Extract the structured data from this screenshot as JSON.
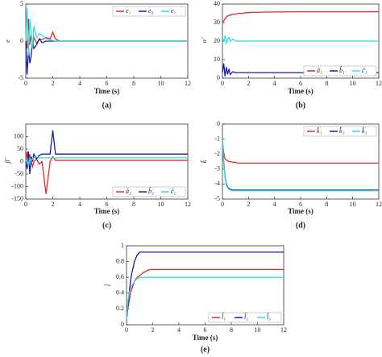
{
  "chart_data": [
    {
      "type": "line",
      "caption": "(a)",
      "xlabel": "Time (s)",
      "ylabel": "e",
      "legend": "top-right",
      "x": [
        0,
        0.1,
        0.2,
        0.3,
        0.4,
        0.5,
        0.6,
        0.8,
        1,
        1.2,
        1.5,
        1.8,
        2,
        2.2,
        2.5,
        3,
        4,
        6,
        8,
        10,
        12
      ],
      "xlim": [
        0,
        12
      ],
      "xticks": [
        0,
        2,
        4,
        6,
        8,
        10,
        12
      ],
      "ylim": [
        -5,
        5
      ],
      "yticks": [
        -5,
        0,
        5
      ],
      "series": [
        {
          "name": "e₁",
          "color": "#e02828",
          "values": [
            0,
            -1,
            3,
            -0.5,
            1,
            -1,
            0.5,
            -0.3,
            0.3,
            0.2,
            0.5,
            0.3,
            1.2,
            0.3,
            0,
            0,
            0,
            0,
            0,
            0,
            0
          ]
        },
        {
          "name": "e₂",
          "color": "#1c1ca8",
          "values": [
            0,
            -4.5,
            -1,
            -3,
            -2,
            0,
            -1,
            -0.5,
            0.3,
            -0.2,
            0,
            0,
            0,
            0,
            0,
            0,
            0,
            0,
            0,
            0,
            0
          ]
        },
        {
          "name": "e₃",
          "color": "#33e0e0",
          "values": [
            0,
            4.5,
            -2,
            3,
            1,
            -1,
            2,
            0.5,
            1,
            0.8,
            0.3,
            0.2,
            0.1,
            0,
            0,
            0,
            0,
            0,
            0,
            0,
            0
          ]
        }
      ]
    },
    {
      "type": "line",
      "caption": "(b)",
      "xlabel": "Time (s)",
      "ylabel": "α̂",
      "legend": "bottom-right",
      "x": [
        0,
        0.1,
        0.2,
        0.3,
        0.4,
        0.5,
        0.6,
        0.8,
        1,
        1.2,
        1.5,
        1.8,
        2,
        2.2,
        2.5,
        3,
        4,
        6,
        8,
        10,
        12
      ],
      "xlim": [
        0,
        12
      ],
      "xticks": [
        0,
        2,
        4,
        6,
        8,
        10,
        12
      ],
      "ylim": [
        0,
        40
      ],
      "yticks": [
        0,
        10,
        20,
        30,
        40
      ],
      "series": [
        {
          "name": "â₁",
          "color": "#e02828",
          "values": [
            30,
            31,
            32,
            33,
            33.5,
            34,
            34,
            34.5,
            34.5,
            35,
            35,
            35.3,
            35.3,
            35.5,
            35.5,
            35.6,
            35.7,
            35.8,
            35.8,
            35.8,
            35.8
          ]
        },
        {
          "name": "b̂₁",
          "color": "#1c1ca8",
          "values": [
            3,
            8,
            1,
            6,
            2,
            5,
            2,
            3.5,
            3,
            3,
            3,
            3,
            3,
            3,
            3,
            3,
            3,
            3,
            3,
            3,
            3
          ]
        },
        {
          "name": "ĉ₁",
          "color": "#33e0e0",
          "values": [
            22,
            20,
            23,
            19,
            21,
            22,
            20,
            21,
            20,
            20,
            20,
            20,
            20,
            20,
            20,
            20,
            20,
            20,
            20,
            20,
            20
          ]
        }
      ]
    },
    {
      "type": "line",
      "caption": "(c)",
      "xlabel": "Time (s)",
      "ylabel": "β̂",
      "legend": "bottom-right",
      "x": [
        0,
        0.1,
        0.2,
        0.3,
        0.4,
        0.5,
        0.6,
        0.8,
        1,
        1.2,
        1.5,
        1.8,
        2,
        2.2,
        2.5,
        3,
        4,
        6,
        8,
        10,
        12
      ],
      "xlim": [
        0,
        12
      ],
      "xticks": [
        0,
        2,
        4,
        6,
        8,
        10,
        12
      ],
      "ylim": [
        -150,
        150
      ],
      "yticks": [
        -150,
        -100,
        -50,
        0,
        50,
        100
      ],
      "series": [
        {
          "name": "â₂",
          "color": "#e02828",
          "values": [
            0,
            40,
            -10,
            30,
            0,
            -20,
            0,
            10,
            -10,
            0,
            -130,
            0,
            20,
            5,
            5,
            5,
            5,
            5,
            5,
            5,
            5
          ]
        },
        {
          "name": "b̂₂",
          "color": "#1c1ca8",
          "values": [
            0,
            -30,
            40,
            -50,
            20,
            0,
            30,
            10,
            25,
            30,
            30,
            30,
            125,
            30,
            30,
            30,
            30,
            30,
            30,
            30,
            30
          ]
        },
        {
          "name": "ĉ₂",
          "color": "#33e0e0",
          "values": [
            0,
            10,
            -20,
            15,
            5,
            10,
            15,
            20,
            15,
            15,
            15,
            15,
            15,
            15,
            15,
            15,
            15,
            15,
            15,
            15,
            15
          ]
        }
      ]
    },
    {
      "type": "line",
      "caption": "(d)",
      "xlabel": "Time (s)",
      "ylabel": "k̂",
      "legend": "top-right",
      "x": [
        0,
        0.1,
        0.2,
        0.3,
        0.4,
        0.5,
        0.6,
        0.8,
        1,
        1.2,
        1.5,
        1.8,
        2,
        2.2,
        2.5,
        3,
        4,
        6,
        8,
        10,
        12
      ],
      "xlim": [
        0,
        12
      ],
      "xticks": [
        0,
        2,
        4,
        6,
        8,
        10,
        12
      ],
      "ylim": [
        -5,
        0
      ],
      "yticks": [
        -5,
        -4,
        -3,
        -2,
        -1,
        0
      ],
      "series": [
        {
          "name": "k̂₁",
          "color": "#e02828",
          "values": [
            -1,
            -2,
            -2.3,
            -2.4,
            -2.45,
            -2.5,
            -2.5,
            -2.55,
            -2.55,
            -2.6,
            -2.6,
            -2.6,
            -2.6,
            -2.6,
            -2.6,
            -2.6,
            -2.6,
            -2.6,
            -2.6,
            -2.6,
            -2.6
          ]
        },
        {
          "name": "k̂₂",
          "color": "#1c1ca8",
          "values": [
            -1,
            -2.5,
            -3.5,
            -4,
            -4.2,
            -4.3,
            -4.35,
            -4.4,
            -4.4,
            -4.4,
            -4.4,
            -4.4,
            -4.4,
            -4.4,
            -4.4,
            -4.4,
            -4.4,
            -4.4,
            -4.4,
            -4.4,
            -4.4
          ]
        },
        {
          "name": "k̂₃",
          "color": "#33e0e0",
          "values": [
            -1,
            -2.6,
            -3.6,
            -4.1,
            -4.25,
            -4.35,
            -4.4,
            -4.45,
            -4.45,
            -4.45,
            -4.45,
            -4.45,
            -4.45,
            -4.45,
            -4.45,
            -4.45,
            -4.45,
            -4.45,
            -4.45,
            -4.45,
            -4.45
          ]
        }
      ]
    },
    {
      "type": "line",
      "caption": "(e)",
      "xlabel": "Time (s)",
      "ylabel": "l̂",
      "legend": "bottom-right",
      "x": [
        0,
        0.1,
        0.2,
        0.3,
        0.4,
        0.5,
        0.6,
        0.8,
        1,
        1.2,
        1.5,
        1.8,
        2,
        2.2,
        2.5,
        3,
        4,
        6,
        8,
        10,
        12
      ],
      "xlim": [
        0,
        12
      ],
      "xticks": [
        0,
        2,
        4,
        6,
        8,
        10,
        12
      ],
      "ylim": [
        0,
        1
      ],
      "yticks": [
        0,
        0.2,
        0.4,
        0.6,
        0.8,
        1
      ],
      "series": [
        {
          "name": "l̂₁",
          "color": "#e02828",
          "values": [
            0.05,
            0.2,
            0.3,
            0.4,
            0.45,
            0.5,
            0.55,
            0.6,
            0.62,
            0.65,
            0.68,
            0.7,
            0.7,
            0.7,
            0.7,
            0.7,
            0.7,
            0.7,
            0.7,
            0.7,
            0.7
          ]
        },
        {
          "name": "l̂₂",
          "color": "#1c1ca8",
          "values": [
            0.05,
            0.25,
            0.4,
            0.55,
            0.65,
            0.72,
            0.8,
            0.88,
            0.92,
            0.92,
            0.92,
            0.92,
            0.92,
            0.92,
            0.92,
            0.92,
            0.92,
            0.92,
            0.92,
            0.92,
            0.92
          ]
        },
        {
          "name": "l̂₃",
          "color": "#33e0e0",
          "values": [
            0.05,
            0.3,
            0.4,
            0.45,
            0.5,
            0.52,
            0.55,
            0.58,
            0.6,
            0.6,
            0.6,
            0.6,
            0.6,
            0.6,
            0.6,
            0.6,
            0.6,
            0.6,
            0.6,
            0.6,
            0.6
          ]
        }
      ]
    }
  ]
}
